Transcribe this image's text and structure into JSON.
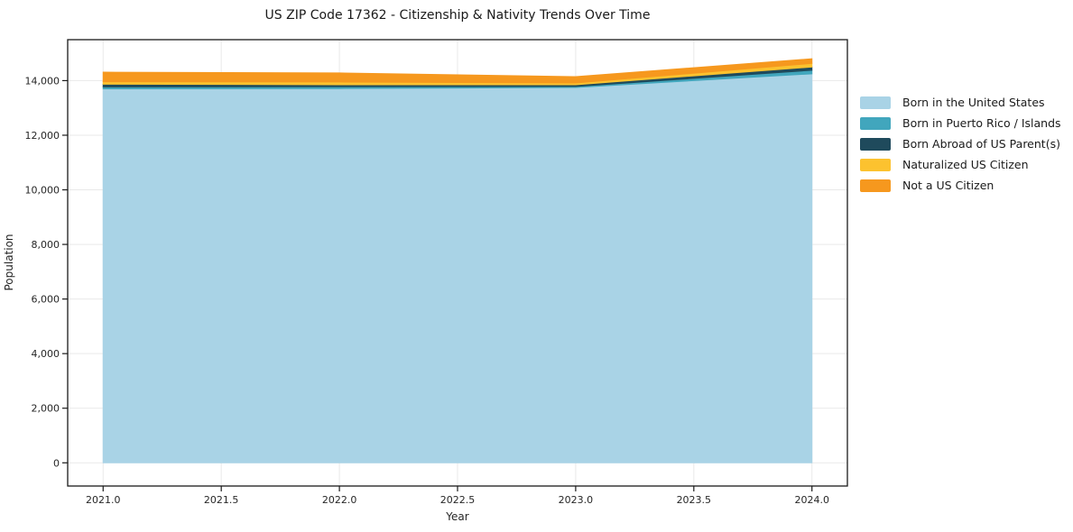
{
  "chart_data": {
    "type": "area",
    "stacked": true,
    "title": "US ZIP Code 17362 - Citizenship & Nativity Trends Over Time",
    "xlabel": "Year",
    "ylabel": "Population",
    "x": [
      2021,
      2022,
      2023,
      2024
    ],
    "series": [
      {
        "name": "Born in the United States",
        "color": "#a9d3e6",
        "values": [
          13700,
          13710,
          13750,
          14250
        ]
      },
      {
        "name": "Born in Puerto Rico / Islands",
        "color": "#41a6bd",
        "values": [
          70,
          70,
          35,
          130
        ]
      },
      {
        "name": "Born Abroad of US Parent(s)",
        "color": "#1f4a5c",
        "values": [
          100,
          70,
          65,
          120
        ]
      },
      {
        "name": "Naturalized US Citizen",
        "color": "#fcc22f",
        "values": [
          90,
          100,
          65,
          130
        ]
      },
      {
        "name": "Not a US Citizen",
        "color": "#f6981e",
        "values": [
          350,
          330,
          230,
          170
        ]
      }
    ],
    "xlim": [
      2020.85,
      2024.15
    ],
    "ylim": [
      -850,
      15500
    ],
    "x_ticks": [
      2021.0,
      2021.5,
      2022.0,
      2022.5,
      2023.0,
      2023.5,
      2024.0
    ],
    "x_tick_labels": [
      "2021.0",
      "2021.5",
      "2022.0",
      "2022.5",
      "2023.0",
      "2023.5",
      "2024.0"
    ],
    "y_ticks": [
      0,
      2000,
      4000,
      6000,
      8000,
      10000,
      12000,
      14000
    ],
    "y_tick_labels": [
      "0",
      "2,000",
      "4,000",
      "6,000",
      "8,000",
      "10,000",
      "12,000",
      "14,000"
    ],
    "grid": true,
    "legend_position": "right-outside"
  },
  "colors": {
    "grid": "#e9e9e9",
    "spine": "#1a1a1a",
    "tick": "#1a1a1a",
    "background": "#ffffff"
  }
}
